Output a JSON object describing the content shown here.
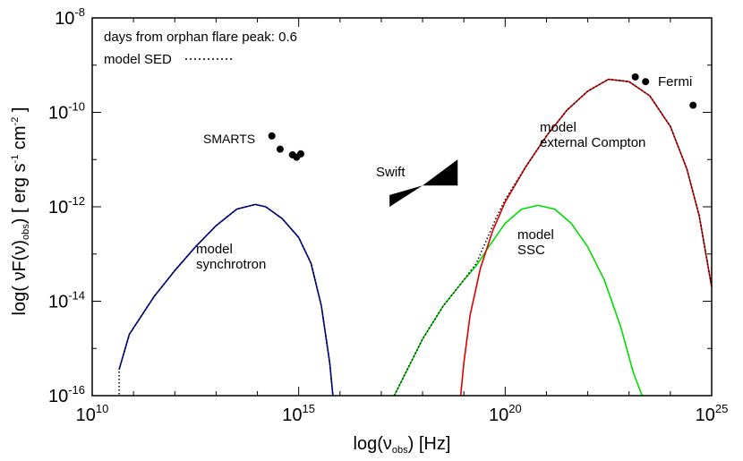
{
  "chart_data": {
    "type": "line",
    "xlabel": "log(ν",
    "xlabel_sub": "obs",
    "xlabel_end": ") [Hz]",
    "ylabel_pre": "log( νF(ν)",
    "ylabel_sub": "obs",
    "ylabel_end": ") [ erg s",
    "ylabel_sup1": "-1",
    "ylabel_cm": " cm",
    "ylabel_sup2": "-2",
    "ylabel_close": " ]",
    "xscale": "log",
    "yscale": "log",
    "xlim": [
      10,
      25
    ],
    "ylim": [
      -16,
      -8
    ],
    "x_ticks": [
      {
        "exp": 10,
        "base": "10",
        "sup": "10"
      },
      {
        "exp": 15,
        "base": "10",
        "sup": "15"
      },
      {
        "exp": 20,
        "base": "10",
        "sup": "20"
      },
      {
        "exp": 25,
        "base": "10",
        "sup": "25"
      }
    ],
    "y_ticks": [
      {
        "exp": -8,
        "base": "10",
        "sup": "-8"
      },
      {
        "exp": -10,
        "base": "10",
        "sup": "-10"
      },
      {
        "exp": -12,
        "base": "10",
        "sup": "-12"
      },
      {
        "exp": -14,
        "base": "10",
        "sup": "-14"
      },
      {
        "exp": -16,
        "base": "10",
        "sup": "-16"
      }
    ],
    "legend": {
      "placement": "top-left",
      "line1": "days from orphan flare peak: 0.6",
      "line2": "model SED"
    },
    "series": [
      {
        "key": "synchrotron",
        "label_lines": [
          "model",
          "synchrotron"
        ],
        "color": "#0000aa",
        "style": "solid",
        "points": [
          [
            10.65,
            -15.45
          ],
          [
            10.9,
            -14.7
          ],
          [
            11.5,
            -13.9
          ],
          [
            12,
            -13.35
          ],
          [
            12.5,
            -12.85
          ],
          [
            13,
            -12.4
          ],
          [
            13.5,
            -12.05
          ],
          [
            13.95,
            -11.95
          ],
          [
            14.2,
            -12.0
          ],
          [
            14.6,
            -12.25
          ],
          [
            15,
            -12.65
          ],
          [
            15.3,
            -13.2
          ],
          [
            15.55,
            -14.1
          ],
          [
            15.75,
            -15.3
          ],
          [
            15.85,
            -16.2
          ]
        ]
      },
      {
        "key": "ssc",
        "label_lines": [
          "model",
          "SSC"
        ],
        "color": "#00dd00",
        "style": "solid",
        "points": [
          [
            17.2,
            -16.2
          ],
          [
            17.6,
            -15.5
          ],
          [
            18,
            -14.8
          ],
          [
            18.5,
            -14.1
          ],
          [
            19,
            -13.55
          ],
          [
            19.3,
            -13.25
          ],
          [
            19.6,
            -12.85
          ],
          [
            20,
            -12.35
          ],
          [
            20.4,
            -12.05
          ],
          [
            20.8,
            -11.97
          ],
          [
            21.2,
            -12.05
          ],
          [
            21.6,
            -12.35
          ],
          [
            22,
            -12.85
          ],
          [
            22.4,
            -13.55
          ],
          [
            22.8,
            -14.55
          ],
          [
            23.1,
            -15.5
          ],
          [
            23.4,
            -16.2
          ]
        ]
      },
      {
        "key": "external_compton",
        "label_lines": [
          "model",
          "external Compton"
        ],
        "color": "#dd0000",
        "style": "solid",
        "points": [
          [
            18.9,
            -16.2
          ],
          [
            19.0,
            -15.3
          ],
          [
            19.15,
            -14.3
          ],
          [
            19.4,
            -13.3
          ],
          [
            19.7,
            -12.5
          ],
          [
            20,
            -11.9
          ],
          [
            20.5,
            -11.15
          ],
          [
            21,
            -10.5
          ],
          [
            21.5,
            -9.95
          ],
          [
            22,
            -9.55
          ],
          [
            22.5,
            -9.3
          ],
          [
            23,
            -9.35
          ],
          [
            23.5,
            -9.65
          ],
          [
            24,
            -10.3
          ],
          [
            24.4,
            -11.2
          ],
          [
            24.7,
            -12.2
          ],
          [
            25,
            -13.7
          ]
        ]
      },
      {
        "key": "model_sed",
        "label_lines": [],
        "color": "#000000",
        "style": "dotted",
        "points": [
          [
            10.65,
            -16.2
          ],
          [
            10.65,
            -15.45
          ],
          [
            10.9,
            -14.7
          ],
          [
            11.5,
            -13.9
          ],
          [
            12,
            -13.35
          ],
          [
            12.5,
            -12.85
          ],
          [
            13,
            -12.4
          ],
          [
            13.5,
            -12.05
          ],
          [
            13.95,
            -11.95
          ],
          [
            14.2,
            -12.0
          ],
          [
            14.6,
            -12.25
          ],
          [
            15,
            -12.65
          ],
          [
            15.3,
            -13.2
          ],
          [
            15.55,
            -14.1
          ],
          [
            15.75,
            -15.3
          ],
          [
            15.85,
            -16.2
          ],
          null,
          [
            17.2,
            -16.2
          ],
          [
            17.6,
            -15.5
          ],
          [
            18,
            -14.8
          ],
          [
            18.5,
            -14.1
          ],
          [
            19,
            -13.55
          ],
          [
            19.3,
            -13.2
          ],
          [
            19.6,
            -12.6
          ],
          [
            19.8,
            -12.2
          ],
          [
            20,
            -11.85
          ],
          [
            20.5,
            -11.15
          ],
          [
            21,
            -10.5
          ],
          [
            21.5,
            -9.95
          ],
          [
            22,
            -9.55
          ],
          [
            22.5,
            -9.3
          ],
          [
            23,
            -9.35
          ],
          [
            23.5,
            -9.65
          ],
          [
            24,
            -10.3
          ],
          [
            24.4,
            -11.2
          ],
          [
            24.7,
            -12.2
          ],
          [
            25,
            -13.7
          ]
        ]
      }
    ],
    "points_series": [
      {
        "name": "SMARTS",
        "color": "#000000",
        "points": [
          [
            14.35,
            -10.5
          ],
          [
            14.55,
            -10.78
          ],
          [
            14.85,
            -10.9
          ],
          [
            15.05,
            -10.88
          ],
          [
            14.95,
            -10.95
          ]
        ]
      },
      {
        "name": "Fermi",
        "color": "#000000",
        "points": [
          [
            23.15,
            -9.25
          ],
          [
            23.4,
            -9.35
          ],
          [
            24.55,
            -9.85
          ]
        ]
      }
    ],
    "bowtie": {
      "name": "Swift",
      "color": "#000000",
      "left_x": 17.2,
      "left_y": [
        -11.75,
        -12.0
      ],
      "pivot": [
        18.0,
        -11.55
      ],
      "right_x": 18.85,
      "right_y": [
        -11.0,
        -11.55
      ]
    }
  }
}
